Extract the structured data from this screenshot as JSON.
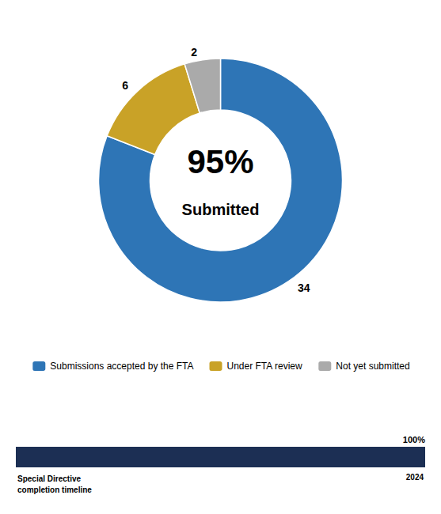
{
  "chart_data": [
    {
      "type": "pie",
      "categories": [
        "Submissions accepted by the FTA",
        "Under FTA review",
        "Not yet submitted"
      ],
      "values": [
        34,
        6,
        2
      ],
      "colors": [
        "#2E75B6",
        "#C9A227",
        "#AAAAAA"
      ],
      "data_labels": true,
      "annotations": [
        "95%",
        "Submitted"
      ],
      "legend": "bottom"
    },
    {
      "type": "bar",
      "orientation": "horizontal",
      "values": [
        100
      ],
      "value_labels": [
        "100%"
      ],
      "data_labels": true,
      "color": "#1C2F54",
      "xlim": [
        0,
        100
      ],
      "tick_labels": false,
      "grid": false,
      "annotations": [
        "Special Directive\ncompletion timeline",
        "2024"
      ]
    }
  ]
}
